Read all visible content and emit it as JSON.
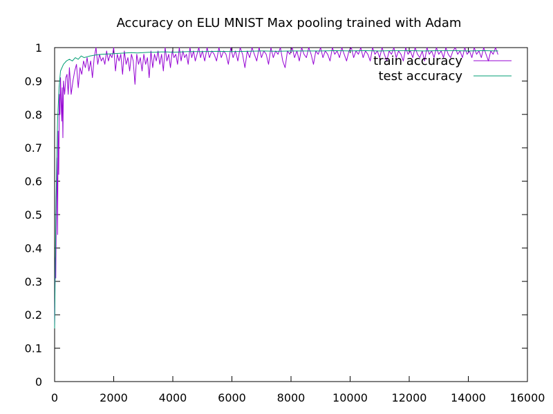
{
  "chart_data": {
    "type": "line",
    "title": "Accuracy on ELU MNIST Max pooling trained with Adam",
    "xlabel": "",
    "ylabel": "",
    "xlim": [
      0,
      16000
    ],
    "ylim": [
      0,
      1
    ],
    "x_ticks": [
      "0",
      "2000",
      "4000",
      "6000",
      "8000",
      "10000",
      "12000",
      "14000",
      "16000"
    ],
    "y_ticks": [
      "0",
      "0.1",
      "0.2",
      "0.3",
      "0.4",
      "0.5",
      "0.6",
      "0.7",
      "0.8",
      "0.9",
      "1"
    ],
    "grid": false,
    "legend_position": "top-right",
    "series": [
      {
        "name": "train accuracy",
        "color": "#9400D3",
        "points": [
          [
            0,
            0.16
          ],
          [
            20,
            0.37
          ],
          [
            40,
            0.31
          ],
          [
            60,
            0.54
          ],
          [
            80,
            0.67
          ],
          [
            100,
            0.44
          ],
          [
            120,
            0.75
          ],
          [
            140,
            0.62
          ],
          [
            160,
            0.86
          ],
          [
            180,
            0.8
          ],
          [
            200,
            0.91
          ],
          [
            220,
            0.84
          ],
          [
            240,
            0.78
          ],
          [
            260,
            0.88
          ],
          [
            280,
            0.73
          ],
          [
            300,
            0.9
          ],
          [
            340,
            0.86
          ],
          [
            380,
            0.91
          ],
          [
            420,
            0.92
          ],
          [
            460,
            0.86
          ],
          [
            500,
            0.94
          ],
          [
            560,
            0.86
          ],
          [
            620,
            0.9
          ],
          [
            680,
            0.93
          ],
          [
            740,
            0.95
          ],
          [
            800,
            0.88
          ],
          [
            860,
            0.94
          ],
          [
            920,
            0.92
          ],
          [
            980,
            0.96
          ],
          [
            1040,
            0.94
          ],
          [
            1100,
            0.97
          ],
          [
            1160,
            0.93
          ],
          [
            1220,
            0.96
          ],
          [
            1280,
            0.91
          ],
          [
            1340,
            0.97
          ],
          [
            1400,
            1.0
          ],
          [
            1460,
            0.95
          ],
          [
            1520,
            0.98
          ],
          [
            1580,
            0.96
          ],
          [
            1640,
            0.97
          ],
          [
            1700,
            0.95
          ],
          [
            1760,
            0.99
          ],
          [
            1820,
            0.96
          ],
          [
            1880,
            0.98
          ],
          [
            1940,
            0.97
          ],
          [
            2000,
            1.0
          ],
          [
            2060,
            0.93
          ],
          [
            2120,
            0.98
          ],
          [
            2180,
            0.96
          ],
          [
            2240,
            0.98
          ],
          [
            2300,
            0.92
          ],
          [
            2360,
            0.99
          ],
          [
            2420,
            0.95
          ],
          [
            2480,
            0.97
          ],
          [
            2540,
            0.93
          ],
          [
            2600,
            0.98
          ],
          [
            2660,
            0.96
          ],
          [
            2720,
            0.89
          ],
          [
            2780,
            0.98
          ],
          [
            2840,
            0.95
          ],
          [
            2900,
            0.97
          ],
          [
            2960,
            0.93
          ],
          [
            3020,
            0.98
          ],
          [
            3080,
            0.95
          ],
          [
            3140,
            0.97
          ],
          [
            3200,
            0.91
          ],
          [
            3260,
            0.99
          ],
          [
            3320,
            0.94
          ],
          [
            3380,
            0.98
          ],
          [
            3440,
            0.96
          ],
          [
            3500,
            0.99
          ],
          [
            3560,
            0.95
          ],
          [
            3620,
            0.98
          ],
          [
            3680,
            0.93
          ],
          [
            3740,
            1.0
          ],
          [
            3800,
            0.96
          ],
          [
            3860,
            0.98
          ],
          [
            3920,
            0.94
          ],
          [
            3980,
            0.99
          ],
          [
            4040,
            0.97
          ],
          [
            4100,
            0.98
          ],
          [
            4160,
            0.95
          ],
          [
            4220,
            1.0
          ],
          [
            4280,
            0.96
          ],
          [
            4340,
            0.99
          ],
          [
            4400,
            0.97
          ],
          [
            4460,
            0.98
          ],
          [
            4520,
            0.95
          ],
          [
            4580,
            1.0
          ],
          [
            4640,
            0.97
          ],
          [
            4700,
            0.99
          ],
          [
            4760,
            0.96
          ],
          [
            4820,
            0.98
          ],
          [
            4880,
            1.0
          ],
          [
            4940,
            0.97
          ],
          [
            5000,
            0.99
          ],
          [
            5080,
            0.96
          ],
          [
            5160,
            1.0
          ],
          [
            5240,
            0.97
          ],
          [
            5320,
            0.99
          ],
          [
            5400,
            0.98
          ],
          [
            5480,
            0.96
          ],
          [
            5560,
            1.0
          ],
          [
            5640,
            0.97
          ],
          [
            5720,
            0.99
          ],
          [
            5800,
            0.98
          ],
          [
            5880,
            0.95
          ],
          [
            5960,
            1.0
          ],
          [
            6040,
            0.97
          ],
          [
            6120,
            0.99
          ],
          [
            6200,
            0.96
          ],
          [
            6280,
            1.0
          ],
          [
            6360,
            0.98
          ],
          [
            6440,
            0.94
          ],
          [
            6520,
            0.99
          ],
          [
            6600,
            0.97
          ],
          [
            6680,
            1.0
          ],
          [
            6760,
            0.98
          ],
          [
            6840,
            0.96
          ],
          [
            6920,
            1.0
          ],
          [
            7000,
            0.97
          ],
          [
            7080,
            0.99
          ],
          [
            7160,
            0.98
          ],
          [
            7240,
            0.95
          ],
          [
            7320,
            1.0
          ],
          [
            7400,
            0.97
          ],
          [
            7480,
            0.99
          ],
          [
            7560,
            0.98
          ],
          [
            7640,
            1.0
          ],
          [
            7720,
            0.96
          ],
          [
            7800,
            0.94
          ],
          [
            7880,
            0.99
          ],
          [
            7960,
            0.98
          ],
          [
            8040,
            1.0
          ],
          [
            8120,
            0.97
          ],
          [
            8200,
            0.99
          ],
          [
            8280,
            0.96
          ],
          [
            8360,
            1.0
          ],
          [
            8440,
            0.98
          ],
          [
            8520,
            0.97
          ],
          [
            8600,
            1.0
          ],
          [
            8680,
            0.98
          ],
          [
            8760,
            0.95
          ],
          [
            8840,
            0.99
          ],
          [
            8920,
            0.98
          ],
          [
            9000,
            1.0
          ],
          [
            9080,
            0.97
          ],
          [
            9160,
            0.99
          ],
          [
            9240,
            0.98
          ],
          [
            9320,
            0.96
          ],
          [
            9400,
            1.0
          ],
          [
            9480,
            0.98
          ],
          [
            9560,
            0.99
          ],
          [
            9640,
            0.97
          ],
          [
            9720,
            1.0
          ],
          [
            9800,
            0.98
          ],
          [
            9880,
            0.96
          ],
          [
            9960,
            0.99
          ],
          [
            10040,
            1.0
          ],
          [
            10120,
            0.97
          ],
          [
            10200,
            0.99
          ],
          [
            10280,
            0.98
          ],
          [
            10360,
            1.0
          ],
          [
            10440,
            0.97
          ],
          [
            10520,
            0.99
          ],
          [
            10600,
            0.98
          ],
          [
            10680,
            0.96
          ],
          [
            10760,
            1.0
          ],
          [
            10840,
            0.98
          ],
          [
            10920,
            0.99
          ],
          [
            11000,
            0.97
          ],
          [
            11080,
            1.0
          ],
          [
            11160,
            0.98
          ],
          [
            11240,
            0.96
          ],
          [
            11320,
            0.99
          ],
          [
            11400,
            0.98
          ],
          [
            11480,
            1.0
          ],
          [
            11560,
            0.97
          ],
          [
            11640,
            0.99
          ],
          [
            11720,
            0.98
          ],
          [
            11800,
            0.96
          ],
          [
            11880,
            1.0
          ],
          [
            11960,
            0.98
          ],
          [
            12040,
            0.99
          ],
          [
            12120,
            0.97
          ],
          [
            12200,
            1.0
          ],
          [
            12280,
            0.98
          ],
          [
            12360,
            0.97
          ],
          [
            12440,
            0.99
          ],
          [
            12520,
            0.96
          ],
          [
            12600,
            1.0
          ],
          [
            12680,
            0.98
          ],
          [
            12760,
            0.99
          ],
          [
            12840,
            0.97
          ],
          [
            12920,
            1.0
          ],
          [
            13000,
            0.98
          ],
          [
            13080,
            0.99
          ],
          [
            13160,
            0.97
          ],
          [
            13240,
            1.0
          ],
          [
            13320,
            0.98
          ],
          [
            13400,
            0.97
          ],
          [
            13480,
            0.99
          ],
          [
            13560,
            1.0
          ],
          [
            13640,
            0.98
          ],
          [
            13720,
            0.99
          ],
          [
            13800,
            0.97
          ],
          [
            13880,
            1.0
          ],
          [
            13960,
            0.98
          ],
          [
            14040,
            0.99
          ],
          [
            14120,
            0.97
          ],
          [
            14200,
            1.0
          ],
          [
            14280,
            0.98
          ],
          [
            14360,
            0.99
          ],
          [
            14440,
            0.97
          ],
          [
            14520,
            1.0
          ],
          [
            14600,
            0.98
          ],
          [
            14680,
            0.96
          ],
          [
            14760,
            0.99
          ],
          [
            14840,
            0.98
          ],
          [
            14920,
            1.0
          ],
          [
            15000,
            0.98
          ]
        ]
      },
      {
        "name": "test accuracy",
        "color": "#009E73",
        "points": [
          [
            0,
            0.16
          ],
          [
            50,
            0.55
          ],
          [
            100,
            0.78
          ],
          [
            150,
            0.88
          ],
          [
            200,
            0.93
          ],
          [
            300,
            0.95
          ],
          [
            400,
            0.96
          ],
          [
            500,
            0.965
          ],
          [
            600,
            0.96
          ],
          [
            700,
            0.97
          ],
          [
            800,
            0.965
          ],
          [
            900,
            0.975
          ],
          [
            1000,
            0.97
          ],
          [
            1200,
            0.975
          ],
          [
            1400,
            0.978
          ],
          [
            1600,
            0.98
          ],
          [
            1800,
            0.981
          ],
          [
            2000,
            0.982
          ],
          [
            2200,
            0.983
          ],
          [
            2400,
            0.984
          ],
          [
            2600,
            0.985
          ],
          [
            2800,
            0.984
          ],
          [
            3000,
            0.985
          ],
          [
            3200,
            0.986
          ],
          [
            3400,
            0.986
          ],
          [
            3600,
            0.987
          ],
          [
            3800,
            0.987
          ],
          [
            4000,
            0.986
          ],
          [
            4500,
            0.988
          ],
          [
            5000,
            0.988
          ],
          [
            5500,
            0.989
          ],
          [
            6000,
            0.988
          ],
          [
            6500,
            0.989
          ],
          [
            7000,
            0.99
          ],
          [
            7500,
            0.989
          ],
          [
            8000,
            0.99
          ],
          [
            8500,
            0.99
          ],
          [
            9000,
            0.99
          ],
          [
            9500,
            0.991
          ],
          [
            10000,
            0.99
          ],
          [
            10500,
            0.991
          ],
          [
            11000,
            0.99
          ],
          [
            11500,
            0.991
          ],
          [
            12000,
            0.991
          ],
          [
            12500,
            0.99
          ],
          [
            13000,
            0.991
          ],
          [
            13500,
            0.991
          ],
          [
            14000,
            0.99
          ],
          [
            14500,
            0.991
          ],
          [
            15000,
            0.99
          ]
        ]
      }
    ]
  }
}
